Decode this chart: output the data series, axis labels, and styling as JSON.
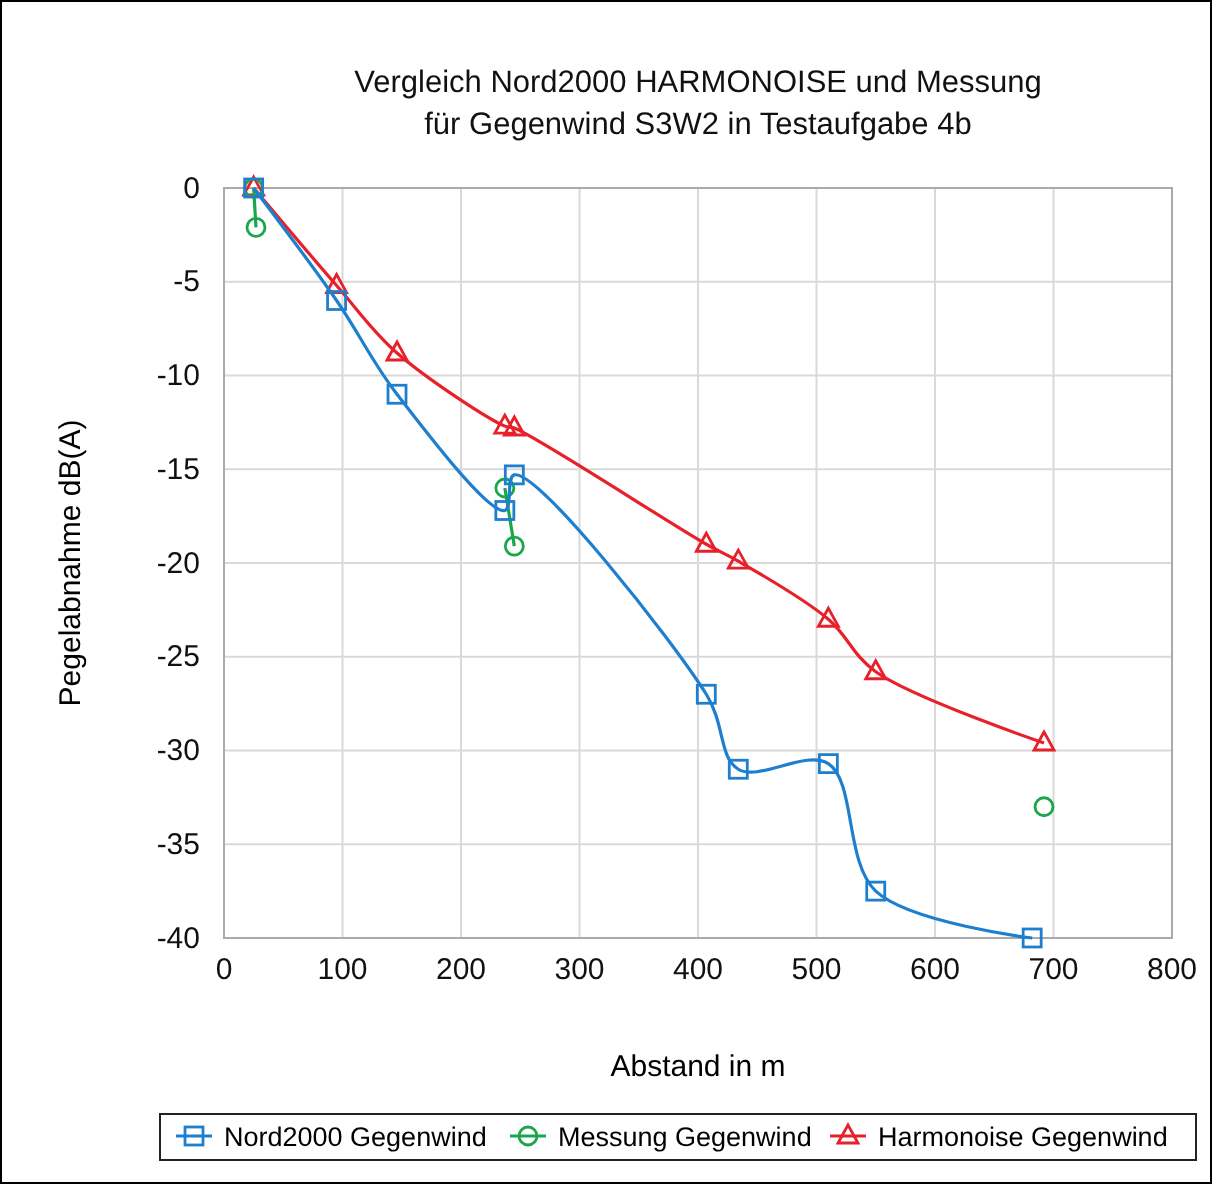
{
  "chart_data": {
    "type": "line",
    "title": "Vergleich Nord2000 HARMONOISE und Messung\nfür Gegenwind S3W2 in Testaufgabe 4b",
    "xlabel": "Abstand in m",
    "ylabel": "Pegelabnahme dB(A)",
    "xlim": [
      0,
      800
    ],
    "xticks": [
      0,
      100,
      200,
      300,
      400,
      500,
      600,
      700,
      800
    ],
    "ylim": [
      -40,
      0
    ],
    "yticks": [
      -40,
      -35,
      -30,
      -25,
      -20,
      -15,
      -10,
      -5,
      0
    ],
    "grid": true,
    "legend": "bottom",
    "series": [
      {
        "name": "Nord2000 Gegenwind",
        "color": "#1f7fcf",
        "marker": "square",
        "x": [
          25,
          95,
          146,
          237,
          245,
          407,
          434,
          510,
          550,
          682
        ],
        "values": [
          0,
          -6,
          -11,
          -17.2,
          -15.3,
          -27,
          -31,
          -30.7,
          -37.5,
          -40
        ]
      },
      {
        "name": "Messung Gegenwind",
        "color": "#1aa64a",
        "marker": "circle",
        "x": [
          25,
          27,
          150,
          237,
          245,
          500,
          692
        ],
        "values": [
          0,
          -2.1,
          null,
          -16,
          -19.1,
          null,
          -33
        ]
      },
      {
        "name": "Harmonoise Gegenwind",
        "color": "#e8202a",
        "marker": "triangle",
        "x": [
          25,
          95,
          146,
          237,
          245,
          407,
          434,
          510,
          550,
          692
        ],
        "values": [
          0,
          -5.2,
          -8.8,
          -12.7,
          -12.8,
          -19,
          -19.9,
          -23,
          -25.8,
          -29.6
        ]
      }
    ]
  }
}
